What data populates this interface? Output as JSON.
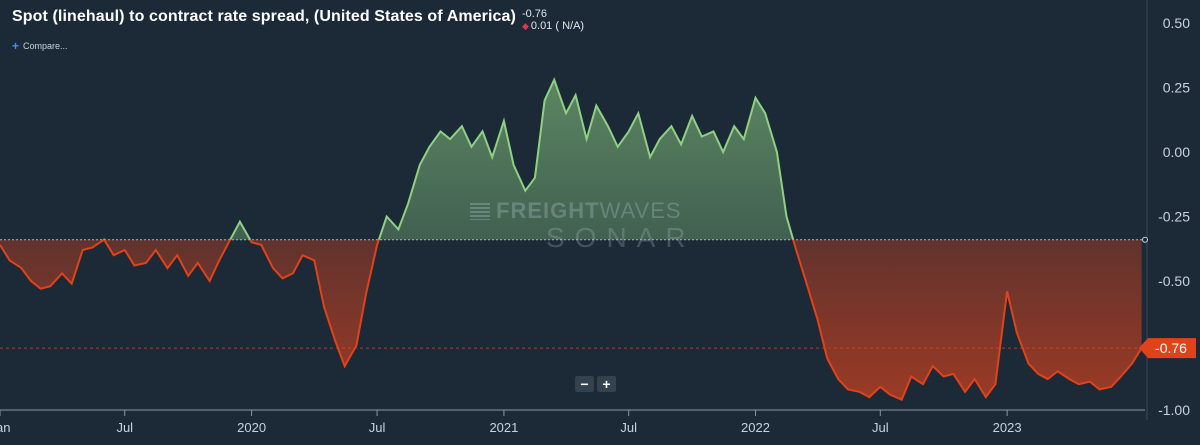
{
  "header": {
    "title": "Spot (linehaul) to contract rate spread, (United States of America)",
    "last_value": "-0.76",
    "change": "0.01 ( N/A)",
    "compare_label": "Compare..."
  },
  "zoom": {
    "minus": "−",
    "plus": "+"
  },
  "watermark": {
    "line1_bold": "FREIGHT",
    "line1_thin": "WAVES",
    "line2": "SONAR"
  },
  "colors": {
    "positive": "#8fd184",
    "negative": "#e0431a",
    "background": "#1c2a38",
    "badge": "#e0431a"
  },
  "chart_data": {
    "type": "area",
    "title": "Spot (linehaul) to contract rate spread, (United States of America)",
    "baseline": -0.34,
    "current_value": -0.76,
    "current_value_label": "-0.76",
    "ylim": [
      -1.0,
      0.55
    ],
    "y_ticks": [
      0.5,
      0.25,
      0.0,
      -0.25,
      -0.5,
      -0.75,
      -1.0
    ],
    "y_tick_labels": [
      "0.50",
      "0.25",
      "0.00",
      "-0.25",
      "-0.50",
      "-0.75",
      "-1.00"
    ],
    "xlim": [
      "2019-01-01",
      "2023-07-20"
    ],
    "x_ticks": [
      "2019-01-01",
      "2019-07-01",
      "2020-01-01",
      "2020-07-01",
      "2021-01-01",
      "2021-07-01",
      "2022-01-01",
      "2022-07-01",
      "2023-01-01"
    ],
    "x_tick_labels": [
      "Jan",
      "Jul",
      "2020",
      "Jul",
      "2021",
      "Jul",
      "2022",
      "Jul",
      "2023"
    ],
    "grid": false,
    "legend": "none",
    "x": [
      "2019-01-01",
      "2019-01-15",
      "2019-02-01",
      "2019-02-15",
      "2019-03-01",
      "2019-03-15",
      "2019-04-01",
      "2019-04-15",
      "2019-05-01",
      "2019-05-15",
      "2019-06-01",
      "2019-06-15",
      "2019-07-01",
      "2019-07-15",
      "2019-08-01",
      "2019-08-15",
      "2019-09-01",
      "2019-09-15",
      "2019-10-01",
      "2019-10-15",
      "2019-11-01",
      "2019-11-15",
      "2019-12-01",
      "2019-12-15",
      "2020-01-01",
      "2020-01-15",
      "2020-02-01",
      "2020-02-15",
      "2020-03-01",
      "2020-03-15",
      "2020-04-01",
      "2020-04-15",
      "2020-05-01",
      "2020-05-15",
      "2020-06-01",
      "2020-06-15",
      "2020-07-01",
      "2020-07-15",
      "2020-08-01",
      "2020-08-15",
      "2020-09-01",
      "2020-09-15",
      "2020-10-01",
      "2020-10-15",
      "2020-11-01",
      "2020-11-15",
      "2020-12-01",
      "2020-12-15",
      "2021-01-01",
      "2021-01-15",
      "2021-02-01",
      "2021-02-15",
      "2021-03-01",
      "2021-03-15",
      "2021-04-01",
      "2021-04-15",
      "2021-05-01",
      "2021-05-15",
      "2021-06-01",
      "2021-06-15",
      "2021-07-01",
      "2021-07-15",
      "2021-08-01",
      "2021-08-15",
      "2021-09-01",
      "2021-09-15",
      "2021-10-01",
      "2021-10-15",
      "2021-11-01",
      "2021-11-15",
      "2021-12-01",
      "2021-12-15",
      "2022-01-01",
      "2022-01-15",
      "2022-02-01",
      "2022-02-15",
      "2022-03-01",
      "2022-03-15",
      "2022-04-01",
      "2022-04-15",
      "2022-05-01",
      "2022-05-15",
      "2022-06-01",
      "2022-06-15",
      "2022-07-01",
      "2022-07-15",
      "2022-08-01",
      "2022-08-15",
      "2022-09-01",
      "2022-09-15",
      "2022-10-01",
      "2022-10-15",
      "2022-11-01",
      "2022-11-15",
      "2022-12-01",
      "2022-12-15",
      "2023-01-01",
      "2023-01-15",
      "2023-02-01",
      "2023-02-15",
      "2023-03-01",
      "2023-03-15",
      "2023-04-01",
      "2023-04-15",
      "2023-05-01",
      "2023-05-15",
      "2023-06-01",
      "2023-06-15",
      "2023-07-01",
      "2023-07-15"
    ],
    "series": [
      {
        "values": [
          -0.36,
          -0.42,
          -0.45,
          -0.5,
          -0.53,
          -0.52,
          -0.47,
          -0.51,
          -0.38,
          -0.37,
          -0.34,
          -0.4,
          -0.38,
          -0.44,
          -0.43,
          -0.38,
          -0.45,
          -0.4,
          -0.48,
          -0.43,
          -0.5,
          -0.42,
          -0.34,
          -0.27,
          -0.35,
          -0.36,
          -0.45,
          -0.49,
          -0.47,
          -0.4,
          -0.42,
          -0.6,
          -0.73,
          -0.83,
          -0.75,
          -0.55,
          -0.36,
          -0.25,
          -0.3,
          -0.2,
          -0.05,
          0.02,
          0.08,
          0.05,
          0.1,
          0.02,
          0.08,
          -0.02,
          0.12,
          -0.05,
          -0.15,
          -0.1,
          0.2,
          0.28,
          0.15,
          0.22,
          0.05,
          0.18,
          0.1,
          0.02,
          0.08,
          0.15,
          -0.02,
          0.05,
          0.1,
          0.03,
          0.14,
          0.06,
          0.08,
          0.0,
          0.1,
          0.05,
          0.21,
          0.15,
          0.0,
          -0.25,
          -0.38,
          -0.5,
          -0.65,
          -0.8,
          -0.88,
          -0.92,
          -0.93,
          -0.95,
          -0.91,
          -0.94,
          -0.96,
          -0.87,
          -0.9,
          -0.83,
          -0.87,
          -0.86,
          -0.93,
          -0.88,
          -0.95,
          -0.9,
          -0.54,
          -0.7,
          -0.82,
          -0.86,
          -0.88,
          -0.85,
          -0.88,
          -0.9,
          -0.89,
          -0.92,
          -0.91,
          -0.87,
          -0.82,
          -0.76
        ]
      }
    ]
  }
}
